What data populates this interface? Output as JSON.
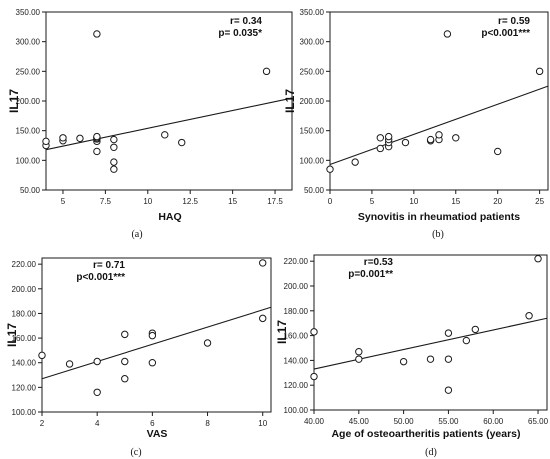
{
  "chart_data": [
    {
      "type": "scatter",
      "panel_label": "(a)",
      "xlabel": "HAQ",
      "ylabel": "IL17",
      "annotation_r": "r= 0.34",
      "annotation_p": "p= 0.035*",
      "xlim": [
        4,
        18.5
      ],
      "ylim": [
        50,
        350
      ],
      "xticks": [
        5,
        7.5,
        10,
        12.5,
        15,
        17.5
      ],
      "xtick_labels": [
        "5",
        "7.5",
        "10",
        "12.5",
        "15",
        "17.5"
      ],
      "yticks": [
        50,
        100,
        150,
        200,
        250,
        300,
        350
      ],
      "ytick_labels": [
        "50.00",
        "100.00",
        "150.00",
        "200.00",
        "250.00",
        "300.00",
        "350.00"
      ],
      "points": [
        [
          4,
          125
        ],
        [
          4,
          132
        ],
        [
          5,
          133
        ],
        [
          5,
          138
        ],
        [
          6,
          137
        ],
        [
          7,
          313
        ],
        [
          7,
          115
        ],
        [
          7,
          132
        ],
        [
          7,
          136
        ],
        [
          7,
          138
        ],
        [
          7,
          140
        ],
        [
          8,
          135
        ],
        [
          8,
          122
        ],
        [
          8,
          97
        ],
        [
          8,
          85
        ],
        [
          11,
          143
        ],
        [
          12,
          130
        ],
        [
          17,
          250
        ]
      ],
      "fit_line": [
        [
          4,
          118
        ],
        [
          18.5,
          205
        ]
      ]
    },
    {
      "type": "scatter",
      "panel_label": "(b)",
      "xlabel": "Synovitis in rheumatiod patients",
      "ylabel": "IL17",
      "annotation_r": "r= 0.59",
      "annotation_p": "p<0.001***",
      "xlim": [
        0,
        26
      ],
      "ylim": [
        50,
        350
      ],
      "xticks": [
        0,
        5,
        10,
        15,
        20,
        25
      ],
      "xtick_labels": [
        "0",
        "5",
        "10",
        "15",
        "20",
        "25"
      ],
      "yticks": [
        50,
        100,
        150,
        200,
        250,
        300,
        350
      ],
      "ytick_labels": [
        "50.00",
        "100.00",
        "150.00",
        "200.00",
        "250.00",
        "300.00",
        "350.00"
      ],
      "points": [
        [
          0,
          85
        ],
        [
          3,
          97
        ],
        [
          6,
          120
        ],
        [
          6,
          138
        ],
        [
          7,
          123
        ],
        [
          7,
          130
        ],
        [
          7,
          135
        ],
        [
          7,
          140
        ],
        [
          9,
          130
        ],
        [
          12,
          133
        ],
        [
          12,
          135
        ],
        [
          13,
          135
        ],
        [
          13,
          143
        ],
        [
          14,
          313
        ],
        [
          15,
          138
        ],
        [
          20,
          115
        ],
        [
          25,
          250
        ]
      ],
      "fit_line": [
        [
          0,
          93
        ],
        [
          26,
          225
        ]
      ]
    },
    {
      "type": "scatter",
      "panel_label": "(c)",
      "xlabel": "VAS",
      "ylabel": "IL17",
      "annotation_r": "r= 0.71",
      "annotation_p": "p<0.001***",
      "xlim": [
        2,
        10.3
      ],
      "ylim": [
        100,
        225
      ],
      "xticks": [
        2,
        4,
        6,
        8,
        10
      ],
      "xtick_labels": [
        "2",
        "4",
        "6",
        "8",
        "10"
      ],
      "yticks": [
        100,
        120,
        140,
        160,
        180,
        200,
        220
      ],
      "ytick_labels": [
        "100.00",
        "120.00",
        "140.00",
        "160.00",
        "180.00",
        "200.00",
        "220.00"
      ],
      "points": [
        [
          2,
          146
        ],
        [
          3,
          139
        ],
        [
          4,
          141
        ],
        [
          4,
          116
        ],
        [
          5,
          163
        ],
        [
          5,
          141
        ],
        [
          5,
          127
        ],
        [
          6,
          164
        ],
        [
          6,
          162
        ],
        [
          6,
          140
        ],
        [
          8,
          156
        ],
        [
          10,
          221
        ],
        [
          10,
          176
        ]
      ],
      "fit_line": [
        [
          2,
          127
        ],
        [
          10.3,
          185
        ]
      ]
    },
    {
      "type": "scatter",
      "panel_label": "(d)",
      "xlabel": "Age of osteoartheritis patients (years)",
      "ylabel": "IL17",
      "annotation_r": "r=0.53",
      "annotation_p": "p=0.001**",
      "xlim": [
        40,
        66
      ],
      "ylim": [
        100,
        225
      ],
      "xticks": [
        40,
        45,
        50,
        55,
        60,
        65
      ],
      "xtick_labels": [
        "40.00",
        "45.00",
        "50.00",
        "55.00",
        "60.00",
        "65.00"
      ],
      "yticks": [
        100,
        120,
        140,
        160,
        180,
        200,
        220
      ],
      "ytick_labels": [
        "100.00",
        "120.00",
        "140.00",
        "160.00",
        "180.00",
        "200.00",
        "220.00"
      ],
      "points": [
        [
          40,
          163
        ],
        [
          40,
          127
        ],
        [
          45,
          147
        ],
        [
          45,
          141
        ],
        [
          50,
          139
        ],
        [
          53,
          141
        ],
        [
          55,
          162
        ],
        [
          55,
          141
        ],
        [
          55,
          116
        ],
        [
          57,
          156
        ],
        [
          58,
          165
        ],
        [
          64,
          176
        ],
        [
          65,
          222
        ]
      ],
      "fit_line": [
        [
          40,
          133
        ],
        [
          66,
          174
        ]
      ]
    }
  ]
}
